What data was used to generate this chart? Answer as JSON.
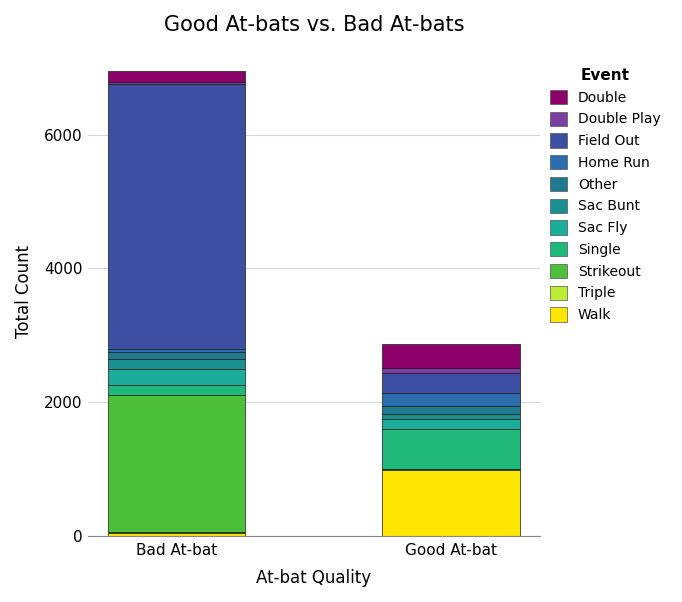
{
  "title": "Good At-bats vs. Bad At-bats",
  "xlabel": "At-bat Quality",
  "ylabel": "Total Count",
  "categories": [
    "Bad At-bat",
    "Good At-bat"
  ],
  "events": [
    "Walk",
    "Triple",
    "Strikeout",
    "Single",
    "Sac Fly",
    "Sac Bunt",
    "Other",
    "Home Run",
    "Field Out",
    "Double Play",
    "Double"
  ],
  "legend_order": [
    "Double",
    "Double Play",
    "Field Out",
    "Home Run",
    "Other",
    "Sac Bunt",
    "Sac Fly",
    "Single",
    "Strikeout",
    "Triple",
    "Walk"
  ],
  "colors": {
    "Walk": "#FFE600",
    "Triple": "#BDED35",
    "Strikeout": "#4DC03B",
    "Single": "#1DB87A",
    "Sac Fly": "#1AAD9A",
    "Sac Bunt": "#1A9090",
    "Other": "#1E7A8C",
    "Home Run": "#2B6DAD",
    "Field Out": "#3C4FA3",
    "Double Play": "#7B3FA0",
    "Double": "#8B0069"
  },
  "values": {
    "Bad At-bat": {
      "Walk": 50,
      "Triple": 10,
      "Strikeout": 2050,
      "Single": 150,
      "Sac Fly": 230,
      "Sac Bunt": 160,
      "Other": 100,
      "Home Run": 50,
      "Field Out": 3960,
      "Double Play": 30,
      "Double": 160
    },
    "Good At-bat": {
      "Walk": 980,
      "Triple": 15,
      "Strikeout": 10,
      "Single": 600,
      "Sac Fly": 145,
      "Sac Bunt": 75,
      "Other": 115,
      "Home Run": 200,
      "Field Out": 290,
      "Double Play": 80,
      "Double": 360
    }
  },
  "background_color": "#ffffff",
  "grid_color": "#d8d8d8",
  "bar_edge_color": "#1a1a1a",
  "bar_width": 0.5,
  "ylim": [
    0,
    7300
  ],
  "yticks": [
    0,
    2000,
    4000,
    6000
  ],
  "title_fontsize": 15,
  "axis_label_fontsize": 12,
  "tick_fontsize": 11,
  "legend_title": "Event"
}
